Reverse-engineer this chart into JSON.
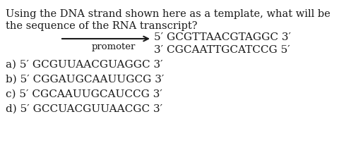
{
  "bg_color": "#ffffff",
  "text_color": "#1a1a1a",
  "question_line1": "Using the DNA strand shown here as a template, what will be",
  "question_line2": "the sequence of the RNA transcript?",
  "strand_top": "5′ GCGTTAACGTAGGC 3′",
  "strand_bottom": "3′ CGCAATTGCATCCG 5′",
  "promoter_label": "promoter",
  "answer_a": "a) 5′ GCGUUAACGUAGGC 3′",
  "answer_b": "b) 5′ CGGAUGCAAUUGCG 3′",
  "answer_c": "c) 5′ CGCAAUUGCAUCCG 3′",
  "answer_d": "d) 5′ GCCUACGUUAACGC 3′",
  "font_size_question": 10.5,
  "font_size_strand": 11.0,
  "font_size_answers": 11.0,
  "font_size_promoter": 9.5
}
